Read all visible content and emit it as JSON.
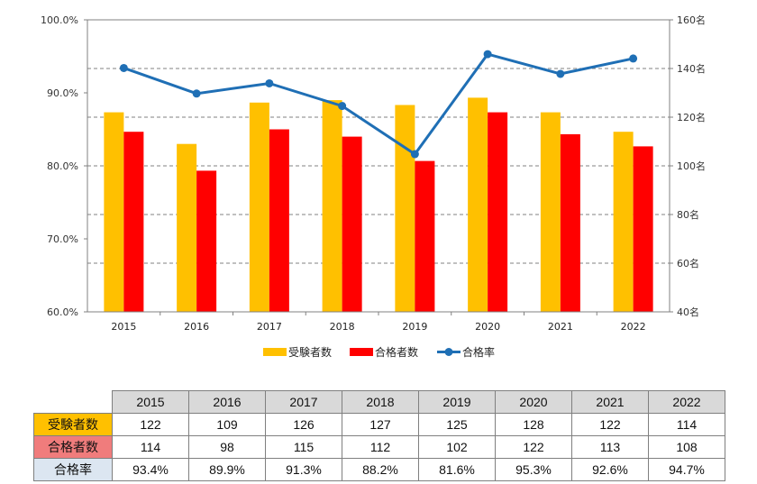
{
  "chart_data": {
    "type": "bar",
    "categories": [
      "2015",
      "2016",
      "2017",
      "2018",
      "2019",
      "2020",
      "2021",
      "2022"
    ],
    "series": [
      {
        "name": "受験者数",
        "kind": "bar",
        "axis": "right",
        "color": "#ffc000",
        "values": [
          122,
          109,
          126,
          127,
          125,
          128,
          122,
          114
        ]
      },
      {
        "name": "合格者数",
        "kind": "bar",
        "axis": "right",
        "color": "#ff0000",
        "values": [
          114,
          98,
          115,
          112,
          102,
          122,
          113,
          108
        ]
      },
      {
        "name": "合格率",
        "kind": "line",
        "axis": "left",
        "color": "#1f6fb5",
        "values": [
          93.4,
          89.9,
          91.3,
          88.2,
          81.6,
          95.3,
          92.6,
          94.7
        ]
      }
    ],
    "left_axis": {
      "ylim": [
        60,
        100
      ],
      "ticks": [
        "60.0%",
        "70.0%",
        "80.0%",
        "90.0%",
        "100.0%"
      ]
    },
    "right_axis": {
      "ylim": [
        40,
        160
      ],
      "ticks": [
        "40名",
        "60名",
        "80名",
        "100名",
        "120名",
        "140名",
        "160名"
      ]
    },
    "grid": true,
    "legend_position": "bottom"
  },
  "table": {
    "years": [
      "2015",
      "2016",
      "2017",
      "2018",
      "2019",
      "2020",
      "2021",
      "2022"
    ],
    "rows": [
      {
        "label": "受験者数",
        "values": [
          "122",
          "109",
          "126",
          "127",
          "125",
          "128",
          "122",
          "114"
        ]
      },
      {
        "label": "合格者数",
        "values": [
          "114",
          "98",
          "115",
          "112",
          "102",
          "122",
          "113",
          "108"
        ]
      },
      {
        "label": "合格率",
        "values": [
          "93.4%",
          "89.9%",
          "91.3%",
          "88.2%",
          "81.6%",
          "95.3%",
          "92.6%",
          "94.7%"
        ]
      }
    ]
  }
}
